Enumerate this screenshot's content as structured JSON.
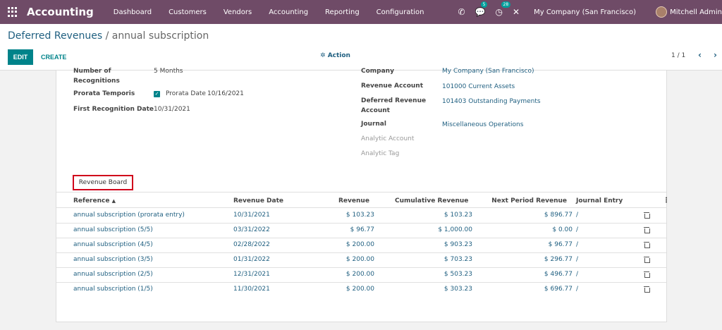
{
  "navbar": {
    "brand": "Accounting",
    "menu": [
      "Dashboard",
      "Customers",
      "Vendors",
      "Accounting",
      "Reporting",
      "Configuration"
    ],
    "chat_badge": "5",
    "activity_badge": "28",
    "company": "My Company (San Francisco)",
    "user": "Mitchell Admin"
  },
  "breadcrumb": {
    "parent": "Deferred Revenues",
    "separator": "/",
    "current": "annual subscription"
  },
  "buttons": {
    "edit": "EDIT",
    "create": "CREATE",
    "action": "Action"
  },
  "pager": {
    "text": "1 / 1"
  },
  "form": {
    "recognitions_label": "Number of Recognitions",
    "recognitions_value": "5 Months",
    "prorata_label": "Prorata Temporis",
    "prorata_date_label": "Prorata Date",
    "prorata_date_value": "10/16/2021",
    "first_recognition_label": "First Recognition Date",
    "first_recognition_value": "10/31/2021",
    "company_label": "Company",
    "company_value": "My Company (San Francisco)",
    "revenue_account_label": "Revenue Account",
    "revenue_account_value": "101000 Current Assets",
    "deferred_account_label": "Deferred Revenue Account",
    "deferred_account_value": "101403 Outstanding Payments",
    "journal_label": "Journal",
    "journal_value": "Miscellaneous Operations",
    "analytic_account_label": "Analytic Account",
    "analytic_tag_label": "Analytic Tag"
  },
  "tab": {
    "label": "Revenue Board"
  },
  "table": {
    "headers": {
      "reference": "Reference",
      "sort_indicator": "▲",
      "revenue_date": "Revenue Date",
      "revenue": "Revenue",
      "cumulative": "Cumulative Revenue",
      "next_period": "Next Period Revenue",
      "journal_entry": "Journal Entry"
    },
    "rows": [
      {
        "reference": "annual subscription (prorata entry)",
        "date": "10/31/2021",
        "revenue": "$ 103.23",
        "cumulative": "$ 103.23",
        "next": "$ 896.77",
        "journal": "/"
      },
      {
        "reference": "annual subscription (5/5)",
        "date": "03/31/2022",
        "revenue": "$ 96.77",
        "cumulative": "$ 1,000.00",
        "next": "$ 0.00",
        "journal": "/"
      },
      {
        "reference": "annual subscription (4/5)",
        "date": "02/28/2022",
        "revenue": "$ 200.00",
        "cumulative": "$ 903.23",
        "next": "$ 96.77",
        "journal": "/"
      },
      {
        "reference": "annual subscription (3/5)",
        "date": "01/31/2022",
        "revenue": "$ 200.00",
        "cumulative": "$ 703.23",
        "next": "$ 296.77",
        "journal": "/"
      },
      {
        "reference": "annual subscription (2/5)",
        "date": "12/31/2021",
        "revenue": "$ 200.00",
        "cumulative": "$ 503.23",
        "next": "$ 496.77",
        "journal": "/"
      },
      {
        "reference": "annual subscription (1/5)",
        "date": "11/30/2021",
        "revenue": "$ 200.00",
        "cumulative": "$ 303.23",
        "next": "$ 696.77",
        "journal": "/"
      }
    ]
  },
  "colors": {
    "navbar": "#6f4b67",
    "primary": "#00838a",
    "link": "#1f5f80",
    "highlight": "#d0021b"
  }
}
